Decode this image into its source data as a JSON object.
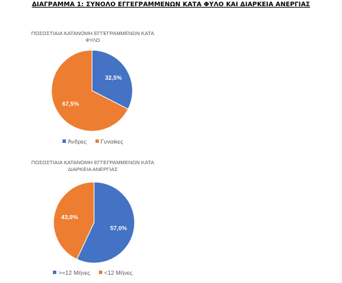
{
  "page_title": "ΔΙΑΓΡΑΜΜΑ 1: ΣΥΝΟΛΟ ΕΓΓΕΓΡΑΜΜΕΝΩΝ ΚΑΤΑ ΦΥΛΟ ΚΑΙ ΔΙΑΡΚΕΙΑ ΑΝΕΡΓΙΑΣ",
  "colors": {
    "blue": "#4472C4",
    "orange": "#ED7D31"
  },
  "chart_data": [
    {
      "type": "pie",
      "title_lines": [
        "ΠΟΣΟΣΤΙΑΙΑ ΚΑΤΑΝΟΜΗ ΕΓΓΕΓΡΑΜΜΕΝΩΝ ΚΑΤΑ",
        "ΦΥΛΟ"
      ],
      "categories": [
        "Άνδρες",
        "Γυναίκες"
      ],
      "values": [
        32.5,
        67.5
      ],
      "data_labels": [
        "32,5%",
        "67,5%"
      ],
      "colors": [
        "#4472C4",
        "#ED7D31"
      ],
      "legend_position": "bottom"
    },
    {
      "type": "pie",
      "title_lines": [
        "ΠΟΣΟΣΤΙΑΙΑ ΚΑΤΑΝΟΜΗ ΕΓΓΕΓΡΑΜΜΕΝΩΝ ΚΑΤΑ",
        "ΔΙΑΡΚΕΙΑ ΑΝΕΡΓΙΑΣ"
      ],
      "categories": [
        ">=12 Μήνες",
        "<12 Μήνες"
      ],
      "values": [
        57.0,
        43.0
      ],
      "data_labels": [
        "57,0%",
        "43,0%"
      ],
      "colors": [
        "#4472C4",
        "#ED7D31"
      ],
      "legend_position": "bottom"
    }
  ]
}
